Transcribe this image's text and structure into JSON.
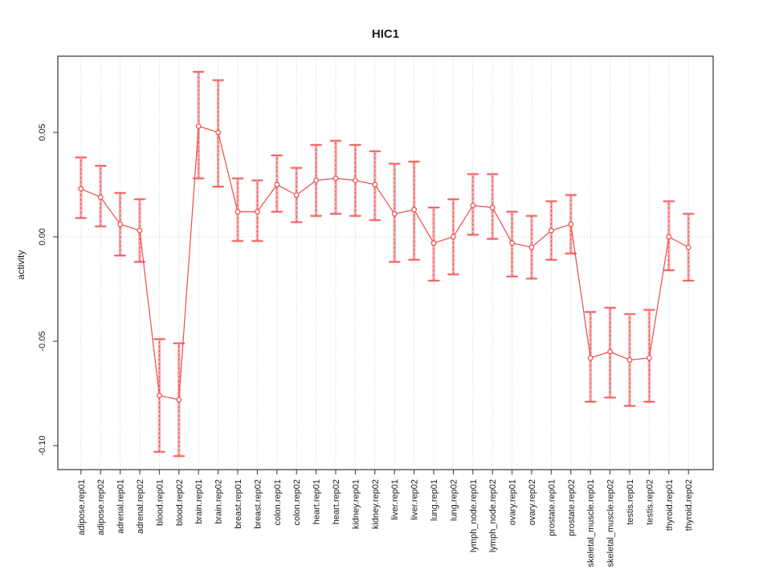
{
  "chart_data": {
    "type": "line",
    "title": "HIC1",
    "ylabel": "activity",
    "xlabel": "",
    "legend": "none",
    "categories": [
      "adipose.rep01",
      "adipose.rep02",
      "adrenal.rep01",
      "adrenal.rep02",
      "blood.rep01",
      "blood.rep02",
      "brain.rep01",
      "brain.rep02",
      "breast.rep01",
      "breast.rep02",
      "colon.rep01",
      "colon.rep02",
      "heart.rep01",
      "heart.rep02",
      "kidney.rep01",
      "kidney.rep02",
      "liver.rep01",
      "liver.rep02",
      "lung.rep01",
      "lung.rep02",
      "lymph_node.rep01",
      "lymph_node.rep02",
      "ovary.rep01",
      "ovary.rep02",
      "prostate.rep01",
      "prostate.rep02",
      "skeletal_muscle.rep01",
      "skeletal_muscle.rep02",
      "testis.rep01",
      "testis.rep02",
      "thyroid.rep01",
      "thyroid.rep02"
    ],
    "series": [
      {
        "name": "HIC1 activity",
        "values": [
          0.023,
          0.019,
          0.006,
          0.003,
          -0.076,
          -0.078,
          0.053,
          0.05,
          0.012,
          0.012,
          0.025,
          0.02,
          0.027,
          0.028,
          0.027,
          0.025,
          0.011,
          0.013,
          -0.003,
          0.0,
          0.015,
          0.014,
          -0.003,
          -0.005,
          0.003,
          0.006,
          -0.058,
          -0.055,
          -0.059,
          -0.058,
          0.0,
          -0.005
        ],
        "ci_high": [
          0.038,
          0.034,
          0.021,
          0.018,
          -0.049,
          -0.051,
          0.079,
          0.075,
          0.028,
          0.027,
          0.039,
          0.033,
          0.044,
          0.046,
          0.044,
          0.041,
          0.035,
          0.036,
          0.014,
          0.018,
          0.03,
          0.03,
          0.012,
          0.01,
          0.017,
          0.02,
          -0.036,
          -0.034,
          -0.037,
          -0.035,
          0.017,
          0.011
        ],
        "ci_low": [
          0.009,
          0.005,
          -0.009,
          -0.012,
          -0.103,
          -0.105,
          0.028,
          0.024,
          -0.002,
          -0.002,
          0.012,
          0.007,
          0.01,
          0.011,
          0.01,
          0.008,
          -0.012,
          -0.011,
          -0.021,
          -0.018,
          0.001,
          -0.001,
          -0.019,
          -0.02,
          -0.011,
          -0.008,
          -0.079,
          -0.077,
          -0.081,
          -0.079,
          -0.016,
          -0.021
        ]
      }
    ],
    "yticks": [
      {
        "v": 0.05,
        "label": "0.05"
      },
      {
        "v": 0.0,
        "label": "0.00"
      },
      {
        "v": -0.05,
        "label": "-0.05"
      },
      {
        "v": -0.1,
        "label": "-0.10"
      }
    ],
    "ylim": [
      -0.1115,
      0.0865
    ],
    "grid": {
      "vertical": "dotted",
      "horizontal": "zero-line-dotted"
    },
    "colors": {
      "line": "#EE4B4B",
      "marker": "#EE4B4B",
      "band": "#F7ACAC",
      "grid": "#C9C9C9",
      "axis": "#333333",
      "text": "#1A1A1A"
    }
  }
}
